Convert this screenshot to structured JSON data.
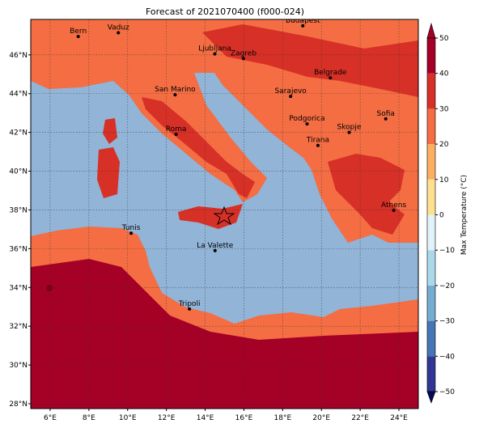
{
  "title": "Forecast of 2021070400 (f000-024)",
  "map_extent": {
    "lon": [
      5,
      25
    ],
    "lat": [
      27.75,
      47.83
    ]
  },
  "lon_ticks": [
    {
      "value": 6,
      "label": "6°E"
    },
    {
      "value": 8,
      "label": "8°E"
    },
    {
      "value": 10,
      "label": "10°E"
    },
    {
      "value": 12,
      "label": "12°E"
    },
    {
      "value": 14,
      "label": "14°E"
    },
    {
      "value": 16,
      "label": "16°E"
    },
    {
      "value": 18,
      "label": "18°E"
    },
    {
      "value": 20,
      "label": "20°E"
    },
    {
      "value": 22,
      "label": "22°E"
    },
    {
      "value": 24,
      "label": "24°E"
    }
  ],
  "lat_ticks": [
    {
      "value": 28,
      "label": "28°N"
    },
    {
      "value": 30,
      "label": "30°N"
    },
    {
      "value": 32,
      "label": "32°N"
    },
    {
      "value": 34,
      "label": "34°N"
    },
    {
      "value": 36,
      "label": "36°N"
    },
    {
      "value": 38,
      "label": "38°N"
    },
    {
      "value": 40,
      "label": "40°N"
    },
    {
      "value": 42,
      "label": "42°N"
    },
    {
      "value": 44,
      "label": "44°N"
    },
    {
      "value": 46,
      "label": "46°N"
    }
  ],
  "cities": [
    "Bern",
    "Vaduz",
    "Budapest",
    "Ljubljana",
    "Zagreb",
    "Belgrade",
    "San Marino",
    "Sarajevo",
    "Sofia",
    "Podgorica",
    "Skopje",
    "Roma",
    "Tirana",
    "Athens",
    "Tunis",
    "La Valette",
    "Tripoli"
  ],
  "colorbar": {
    "label": "Max Temperature (°C)",
    "lim": [
      -50,
      50
    ],
    "ticks": [
      {
        "value": -50,
        "label": "−50"
      },
      {
        "value": -40,
        "label": "−40"
      },
      {
        "value": -30,
        "label": "−30"
      },
      {
        "value": -20,
        "label": "−20"
      },
      {
        "value": -10,
        "label": "−10"
      },
      0,
      10,
      20,
      30,
      40,
      50
    ],
    "colors": [
      "#313695",
      "#4575b4",
      "#74add1",
      "#abd9e9",
      "#e0f3f8",
      "#fee090",
      "#fdae61",
      "#f46d43",
      "#d73027",
      "#a50026"
    ],
    "under_color": "#08085a",
    "over_color": "#a50026"
  }
}
